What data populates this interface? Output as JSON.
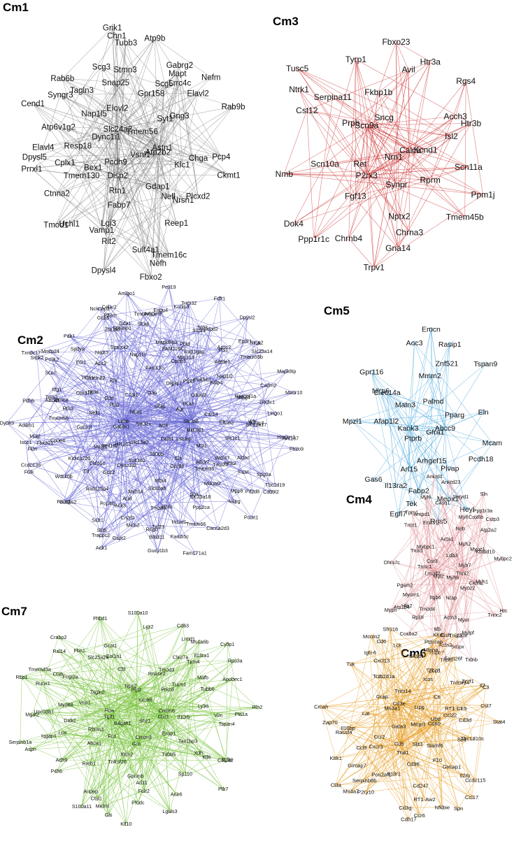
{
  "panels": [
    {
      "id": "cm1",
      "title": "Cm1",
      "edge_color": "#8c8c8c",
      "node_color": "#bdbdbd",
      "nodes": [
        "Vsnl1",
        "Pcdh9",
        "Tmem56",
        "Disp2",
        "Dync1i1",
        "Astn1",
        "Rtn1",
        "Elovl2",
        "Gdap1",
        "Bex1",
        "Syt1",
        "Fabp7",
        "Nap1l5",
        "Klc1",
        "Tmem130",
        "Gpr158",
        "Nefl",
        "Resp18",
        "Gng3",
        "Lgi3",
        "Snap25",
        "Nrsn1",
        "Cplx1",
        "Scg5",
        "Atp2b2",
        "Tagln3",
        "Chga",
        "Vamp1",
        "Stmn3",
        "Reep1",
        "Atp6v1g2",
        "Lrrc4c",
        "Rit2",
        "Scg3",
        "Plcxd2",
        "Ctnna2",
        "Mapt",
        "Sult4a1",
        "Syngr3",
        "Elavl2",
        "Uchl1",
        "Tubb3",
        "Slc24a2",
        "Elavl4",
        "Gabrg2",
        "Nefh",
        "Rab6b",
        "Pcp4",
        "Tmod1",
        "Chn1",
        "Tmem16c",
        "Dpysl5",
        "Nefm",
        "Dpysl4",
        "Grik1",
        "Ckmt1",
        "Prrxl1",
        "Atp9b",
        "Fbxo2",
        "Cend1",
        "Rab9b"
      ]
    },
    {
      "id": "cm3",
      "title": "Cm3",
      "edge_color": "#cf3d3d",
      "node_color": "#e8a0a0",
      "nodes": [
        "Nrn1",
        "Ret",
        "Sncg",
        "Synpr",
        "Prph",
        "Kcnd1",
        "Fgf13",
        "Fkbp1b",
        "Rprm",
        "Scn10a",
        "Scn9a",
        "Nptx2",
        "Serpina11",
        "Isl2",
        "Calca",
        "Avil",
        "Chrna3",
        "Cst12",
        "Acch3",
        "Chrnb4",
        "Tyrp1",
        "Scn11a",
        "P2rx3",
        "Htr3a",
        "Gna14",
        "Ntrk1",
        "Htr3b",
        "Ppp1r1c",
        "Fbxo23",
        "Tmem45b",
        "Nmb",
        "Rgs4",
        "Trpv1",
        "Tusc5",
        "Ppm1j",
        "Dok4"
      ]
    },
    {
      "id": "cm2",
      "title": "Cm2",
      "edge_color": "#6f6fd8",
      "node_color": "#6f6fd8",
      "nodes": [
        "Mt3",
        "Stk32c",
        "Gfap",
        "Calb1",
        "Ntsr2",
        "Agt",
        "Slc15a2",
        "Dao",
        "Lsamp",
        "Gabbr1",
        "Bcan",
        "S100b",
        "C1ql1",
        "Mid1ip1",
        "Hrsp12",
        "Digap1",
        "Gls",
        "Pla2",
        "Cdw92",
        "Sult1d1",
        "Ldhb",
        "Mlc1",
        "Rnf182",
        "Ptpl1",
        "Gpr98",
        "Ddrf",
        "Car14",
        "Dync1li2",
        "Fam13c",
        "Adcy2",
        "Nell1",
        "Plekhb1",
        "Rftx4",
        "Rts",
        "Eftsa2",
        "Magi1",
        "Cpeb1",
        "Tmem35",
        "Dtna",
        "Adlp4",
        "Gdc2",
        "Nap1l3",
        "Wdr47",
        "Gpr37l",
        "Mrps14",
        "Slc30a9",
        "Tmem82",
        "Slc1c1",
        "Cldn10",
        "FAM120C",
        "Trim23",
        "Otud7b",
        "Nap1l2",
        "Myh14",
        "Apc2",
        "Nrtk2",
        "Kidins220",
        "Rap1gap",
        "Sox",
        "Tfdn1",
        "Ndrg4",
        "Araf",
        "Mapk8ip3",
        "Mboat2",
        "Rtn3",
        "Adhfe1",
        "Tmod3",
        "Sparck2",
        "Wfs",
        "Tst",
        "Pbld",
        "Slc25a18",
        "Gpm6a",
        "Rasgef1a",
        "Rab11fip4",
        "Nudt3",
        "Aldoc",
        "Tmem56",
        "Pls1",
        "Klhl4",
        "Etv1",
        "Slc22a17",
        "Pcp4l1",
        "Strap",
        "Fasn",
        "Abca5",
        "Acss2",
        "Ank3",
        "Gprasp1",
        "Kifap3",
        "Cpne4",
        "S1pr1",
        "Ppp2ca",
        "Itfg1",
        "Dixdc1",
        "Cryzl1",
        "Zfp180",
        "Mpp5",
        "Fbxo21",
        "Gdpd2",
        "Znf23",
        "Spdya",
        "Slc9a6",
        "Wdr40b",
        "Tmem62",
        "Tmem66",
        "Trim2",
        "Tmem55b",
        "Meis2",
        "Gda1",
        "Spg3a",
        "Mal2",
        "Sirt3",
        "Hoxd1",
        "Scoc",
        "Cadm2",
        "Sstr1",
        "Arhgef9",
        "Napg",
        "Fktn",
        "Epdr1",
        "Rngb",
        "Gnb5",
        "Lingo1",
        "Cadps2",
        "Enpp4",
        "Fam55c",
        "Pcsk2",
        "Slc25a14",
        "Slit5",
        "Pflem",
        "Pdzd8",
        "Isoc1",
        "Nlk",
        "Btbd11",
        "Pak1",
        "Hmgcs1",
        "Fads1",
        "Trim32",
        "Cd99l2",
        "Pdhb",
        "Nrsn2",
        "Gspt2",
        "Celar2",
        "Rnf187",
        "Folk",
        "Kcnip3",
        "Cacna2d3",
        "Mmtp24",
        "Mapk8ip",
        "Trappc2",
        "Ncknap1",
        "Pcmt1",
        "Adarb1",
        "Dpysl2",
        "Gucy1b3",
        "Txndc17",
        "Fbxo9",
        "Ccdc136",
        "Pex19",
        "Fam171a1",
        "Srpk2",
        "Mtmr10",
        "Ank1",
        "Amigo1",
        "Tbc1d19",
        "Dynlt3",
        "Fdft1"
      ]
    },
    {
      "id": "cm5",
      "title": "Cm5",
      "edge_color": "#5bb0e0",
      "node_color": "#5bb0e0",
      "nodes": [
        "Gfra1",
        "Ptprb",
        "Palmd",
        "Arhgef15",
        "Matn3",
        "Pparg",
        "Arl15",
        "Mmm2",
        "Plvap",
        "Afap1l2",
        "Kank3",
        "Fabp2",
        "Clec14a",
        "Abcc9",
        "Il13ra2",
        "Znf521",
        "Meox1",
        "Nlrp6",
        "Eln",
        "Tek",
        "Aoc3",
        "Pcdh18",
        "Gas6",
        "Rasip1",
        "Rgs5",
        "Gpr116",
        "Mcam",
        "Egfl7",
        "Emcn",
        "Heyl",
        "Mpzl1",
        "Tspan9"
      ]
    },
    {
      "id": "cm4",
      "title": "Cm4",
      "edge_color": "#e3999e",
      "node_color": "#e3999e",
      "nodes": [
        "Myh6",
        "Myl2",
        "Ldb3",
        "Nrap",
        "Car3",
        "Myh7",
        "Itgb6",
        "Acta1",
        "Myoz2",
        "Tnnc1",
        "Myh2",
        "Actn3",
        "Mybpc1",
        "Ckmt2",
        "Tmod4",
        "Neb",
        "Myot",
        "Tnni1",
        "Myoz1",
        "Mb",
        "Eno3",
        "Myh1",
        "Myom1",
        "Mylf",
        "Ckm",
        "Tnni2",
        "Kbtbd10",
        "Rpl3l",
        "Casq1",
        "Mylpf",
        "Pgam2",
        "Cox8b",
        "Actn2",
        "Ampd1",
        "Lmod2",
        "Hfe2",
        "Smyd1",
        "Smpx",
        "Tnnt1",
        "Atp2a2",
        "Hspb7",
        "Myl6",
        "Tnnc2",
        "Atp1b4",
        "Ppp1r3a",
        "Tnnt3",
        "Tpm1",
        "Mybpc2",
        "Cox6a2",
        "Ankrd23",
        "Txlnb",
        "Dhrs7c",
        "Csrp3",
        "Tpm2",
        "Ankrd1",
        "Hrc",
        "Mypn",
        "Sln"
      ]
    },
    {
      "id": "cm7",
      "title": "Cm7",
      "edge_color": "#7ec544",
      "node_color": "#7ec544",
      "nodes": [
        "Shc1",
        "B4galt1",
        "Kcnk6",
        "Cmtm3",
        "Flna",
        "Cmtm6",
        "Fn1",
        "Npc2",
        "Erap1",
        "Rbms1",
        "Prkcd",
        "Ifitm2",
        "Tagln2",
        "Il10rb",
        "Abca1",
        "Rnase2",
        "Tubb5",
        "Vnn1",
        "Tram1",
        "Tnfrsf26",
        "Cfd",
        "Tax1bp3",
        "Dab2",
        "Tmod3",
        "Gpnmb",
        "Grn",
        "Ly96",
        "Rreb1",
        "Col1a1",
        "Xdh",
        "Myd88",
        "Tubb6",
        "Arl11",
        "Slc25a24",
        "Vim",
        "Lox",
        "Clec7a",
        "Sp110",
        "Fcgr2a",
        "Mafb",
        "Tgif1",
        "Gcnt1",
        "Klf6",
        "Iqgap1",
        "Tpm4",
        "Folr2",
        "Ctsb",
        "Tspan4",
        "Adh9",
        "Clic1",
        "Ano6",
        "Unc93b1",
        "Il13ra1",
        "Anpep",
        "Fbn1",
        "Col5a2",
        "P4hb",
        "Lmid1",
        "Pfodc",
        "Runx1",
        "Apobec1",
        "Ctsl1",
        "Lyz2",
        "Tgfbi",
        "Mgat2",
        "Ms4a6b",
        "Metml",
        "Ral14",
        "Pla1a",
        "Aspn",
        "Cd63",
        "Lgals3",
        "Tmem45a",
        "Rps3a",
        "Gls",
        "Pltbd1",
        "Plp2",
        "Serpinb1a",
        "Cyfip1",
        "Klf10",
        "Crabp2",
        "Rln2",
        "S100a11",
        "S100a10",
        "Ptk7",
        "Rbp1"
      ]
    },
    {
      "id": "cm6",
      "title": "Cm6",
      "edge_color": "#e8a431",
      "node_color": "#e8a431",
      "nodes": [
        "Mmp3",
        "Gata3",
        "Lipg",
        "Slit3",
        "Ms4a1",
        "Ubd",
        "Trat1",
        "Trim14",
        "Slamf6",
        "Ccr2",
        "C6",
        "Cd96",
        "Grap",
        "Ccl22",
        "Cxcr3",
        "Icos",
        "F10",
        "Lat",
        "RT1-CE5",
        "Il18r1",
        "Sh2d1a",
        "Sell",
        "Ccl9",
        "Zbp1",
        "Cd247",
        "Tcrb",
        "Cd3d",
        "Pou2af1",
        "Skap1",
        "Gimap1",
        "Il18bp",
        "Tnfrsf14",
        "Cd3e",
        "Cxcl13",
        "Tbc1d10c",
        "Gimap7",
        "Mlana",
        "Cd5",
        "Cd69",
        "Znrf1",
        "Serpinb6b",
        "Lck",
        "Il2rb",
        "Rassf4",
        "Fam26f",
        "RT1-Aw2",
        "Igh-6",
        "Cst7",
        "P2ry10",
        "Ptprcap",
        "Nfkbie",
        "Zap70",
        "Il7",
        "Cd3g",
        "Cd6",
        "Ccdc115",
        "Klrk1",
        "Klrd1",
        "Ccr6",
        "Txk",
        "C3",
        "Ms4a7",
        "Sfrs16",
        "Ccl17",
        "Cmah",
        "Tnip1",
        "Cdh17",
        "Mcoln2",
        "Stat4",
        "Ciita",
        "Cish",
        "Spn"
      ]
    }
  ]
}
